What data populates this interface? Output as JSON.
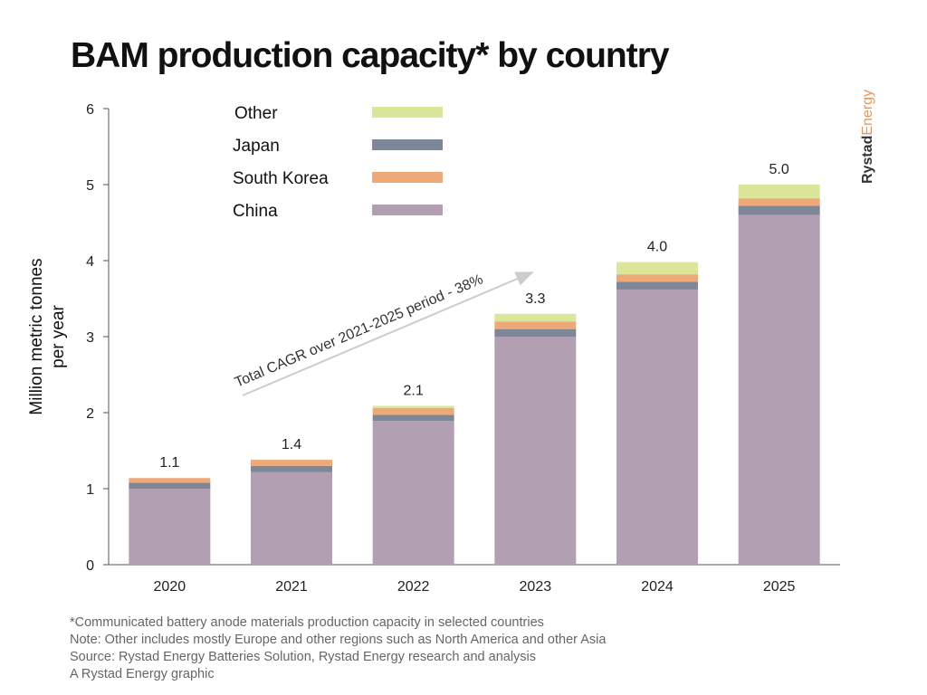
{
  "title": "BAM production capacity* by country",
  "brand": {
    "part1": "Rystad",
    "part2": "Energy",
    "color1": "#333333",
    "color2": "#E8965A"
  },
  "chart_data": {
    "type": "bar",
    "stacked": true,
    "title": "BAM production capacity* by country",
    "xlabel": "",
    "ylabel": "Million metric tonnes per year",
    "ylabel_lines": [
      "Million metric tonnes",
      "per year"
    ],
    "ylim": [
      0,
      6
    ],
    "yticks": [
      0,
      1,
      2,
      3,
      4,
      5,
      6
    ],
    "categories": [
      "2020",
      "2021",
      "2022",
      "2023",
      "2024",
      "2025"
    ],
    "series": [
      {
        "name": "China",
        "color": "#B29FB1",
        "values": [
          1.0,
          1.22,
          1.89,
          3.0,
          3.62,
          4.6
        ]
      },
      {
        "name": "Japan",
        "color": "#7D8797",
        "values": [
          0.08,
          0.08,
          0.08,
          0.1,
          0.1,
          0.12
        ]
      },
      {
        "name": "South Korea",
        "color": "#EEA978",
        "values": [
          0.06,
          0.08,
          0.09,
          0.1,
          0.1,
          0.1
        ]
      },
      {
        "name": "Other",
        "color": "#DCE69A",
        "values": [
          0.0,
          0.0,
          0.03,
          0.1,
          0.16,
          0.18
        ]
      }
    ],
    "totals_labels": [
      "1.1",
      "1.4",
      "2.1",
      "3.3",
      "4.0",
      "5.0"
    ],
    "legend": [
      "Other",
      "Japan",
      "South Korea",
      "China"
    ],
    "legend_position": "top-left",
    "annotation": "Total CAGR over 2021-2025 period - 38%",
    "grid": false
  },
  "footnotes": [
    "*Communicated battery anode materials production capacity in selected countries",
    "Note: Other includes mostly Europe and other regions such as North America and other Asia",
    "Source: Rystad Energy Batteries Solution, Rystad Energy research and analysis",
    "A Rystad Energy graphic"
  ]
}
